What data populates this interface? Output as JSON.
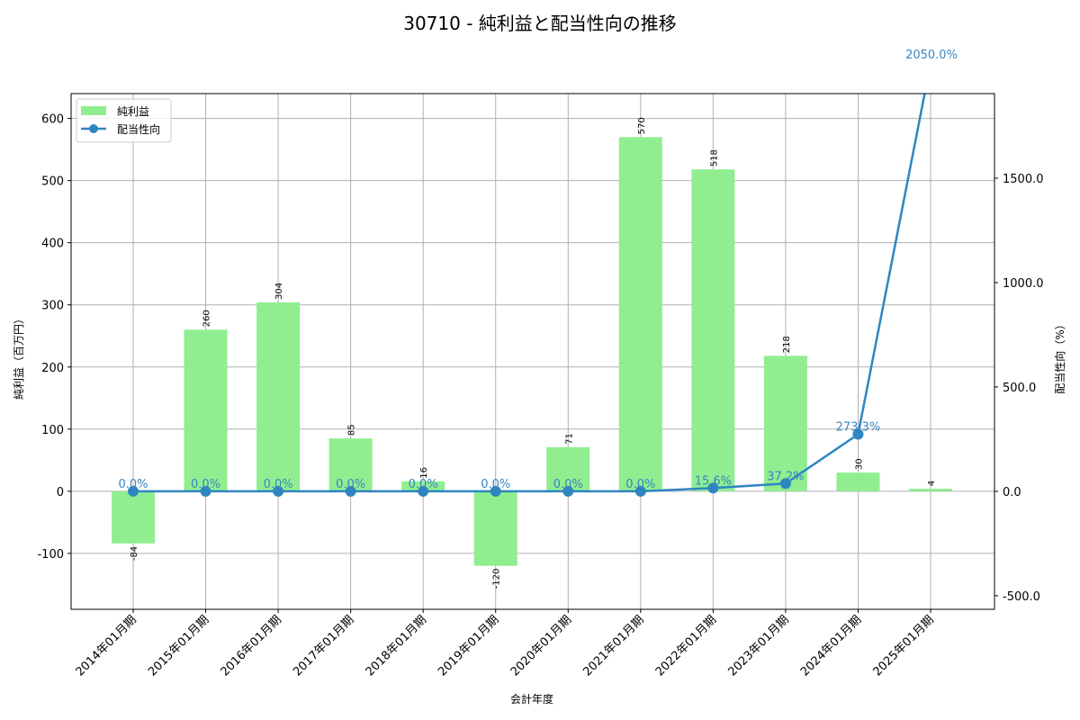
{
  "chart_data": {
    "type": "bar+line",
    "title": "30710 - 純利益と配当性向の推移",
    "xlabel": "会計年度",
    "ylabel_left": "純利益（百万円）",
    "ylabel_right": "配当性向（%）",
    "categories": [
      "2014年01月期",
      "2015年01月期",
      "2016年01月期",
      "2017年01月期",
      "2018年01月期",
      "2019年01月期",
      "2020年01月期",
      "2021年01月期",
      "2022年01月期",
      "2023年01月期",
      "2024年01月期",
      "2025年01月期"
    ],
    "series": [
      {
        "name": "純利益",
        "type": "bar",
        "axis": "left",
        "color": "#90ee90",
        "values": [
          -84,
          260,
          304,
          85,
          16,
          -120,
          71,
          570,
          518,
          218,
          30,
          4
        ],
        "labels": [
          "-84",
          "260",
          "304",
          "85",
          "16",
          "-120",
          "71",
          "570",
          "518",
          "218",
          "30",
          "4"
        ]
      },
      {
        "name": "配当性向",
        "type": "line",
        "axis": "right",
        "color": "#2e86c1",
        "values": [
          0.0,
          0.0,
          0.0,
          0.0,
          0.0,
          0.0,
          0.0,
          0.0,
          15.6,
          37.2,
          273.3,
          2050.0
        ],
        "labels": [
          "0.0%",
          "0.0%",
          "0.0%",
          "0.0%",
          "0.0%",
          "0.0%",
          "0.0%",
          "0.0%",
          "15.6%",
          "37.2%",
          "273.3%",
          "2050.0%"
        ]
      }
    ],
    "ylim_left": [
      -190,
      640
    ],
    "ylim_right": [
      -565,
      1905
    ],
    "yticks_left": [
      -100,
      0,
      100,
      200,
      300,
      400,
      500,
      600
    ],
    "yticks_right": [
      "-500.0",
      "0.0",
      "500.0",
      "1000.0",
      "1500.0"
    ],
    "yticks_right_values": [
      -500,
      0,
      500,
      1000,
      1500
    ],
    "grid": true,
    "legend_position": "upper left"
  },
  "legend": {
    "items": [
      {
        "label": "純利益",
        "kind": "bar",
        "color": "#90ee90"
      },
      {
        "label": "配当性向",
        "kind": "line",
        "color": "#2e86c1"
      }
    ]
  }
}
